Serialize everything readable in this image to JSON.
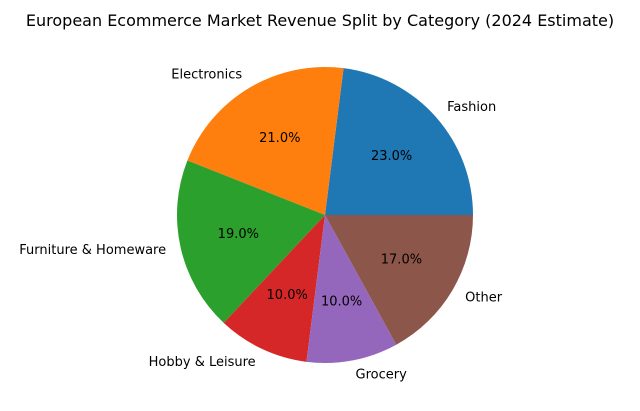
{
  "chart_data": {
    "type": "pie",
    "title": "European Ecommerce Market Revenue Split by Category (2024 Estimate)",
    "categories": [
      "Fashion",
      "Electronics",
      "Furniture & Homeware",
      "Hobby & Leisure",
      "Grocery",
      "Other"
    ],
    "values": [
      23.0,
      21.0,
      19.0,
      10.0,
      10.0,
      17.0
    ],
    "percent_labels": [
      "23.0%",
      "21.0%",
      "19.0%",
      "10.0%",
      "10.0%",
      "17.0%"
    ],
    "colors": [
      "#1f77b4",
      "#ff7f0e",
      "#2ca02c",
      "#d62728",
      "#9467bd",
      "#8c564b"
    ],
    "start_angle_deg": 0,
    "direction": "counterclockwise",
    "legend": "none"
  }
}
